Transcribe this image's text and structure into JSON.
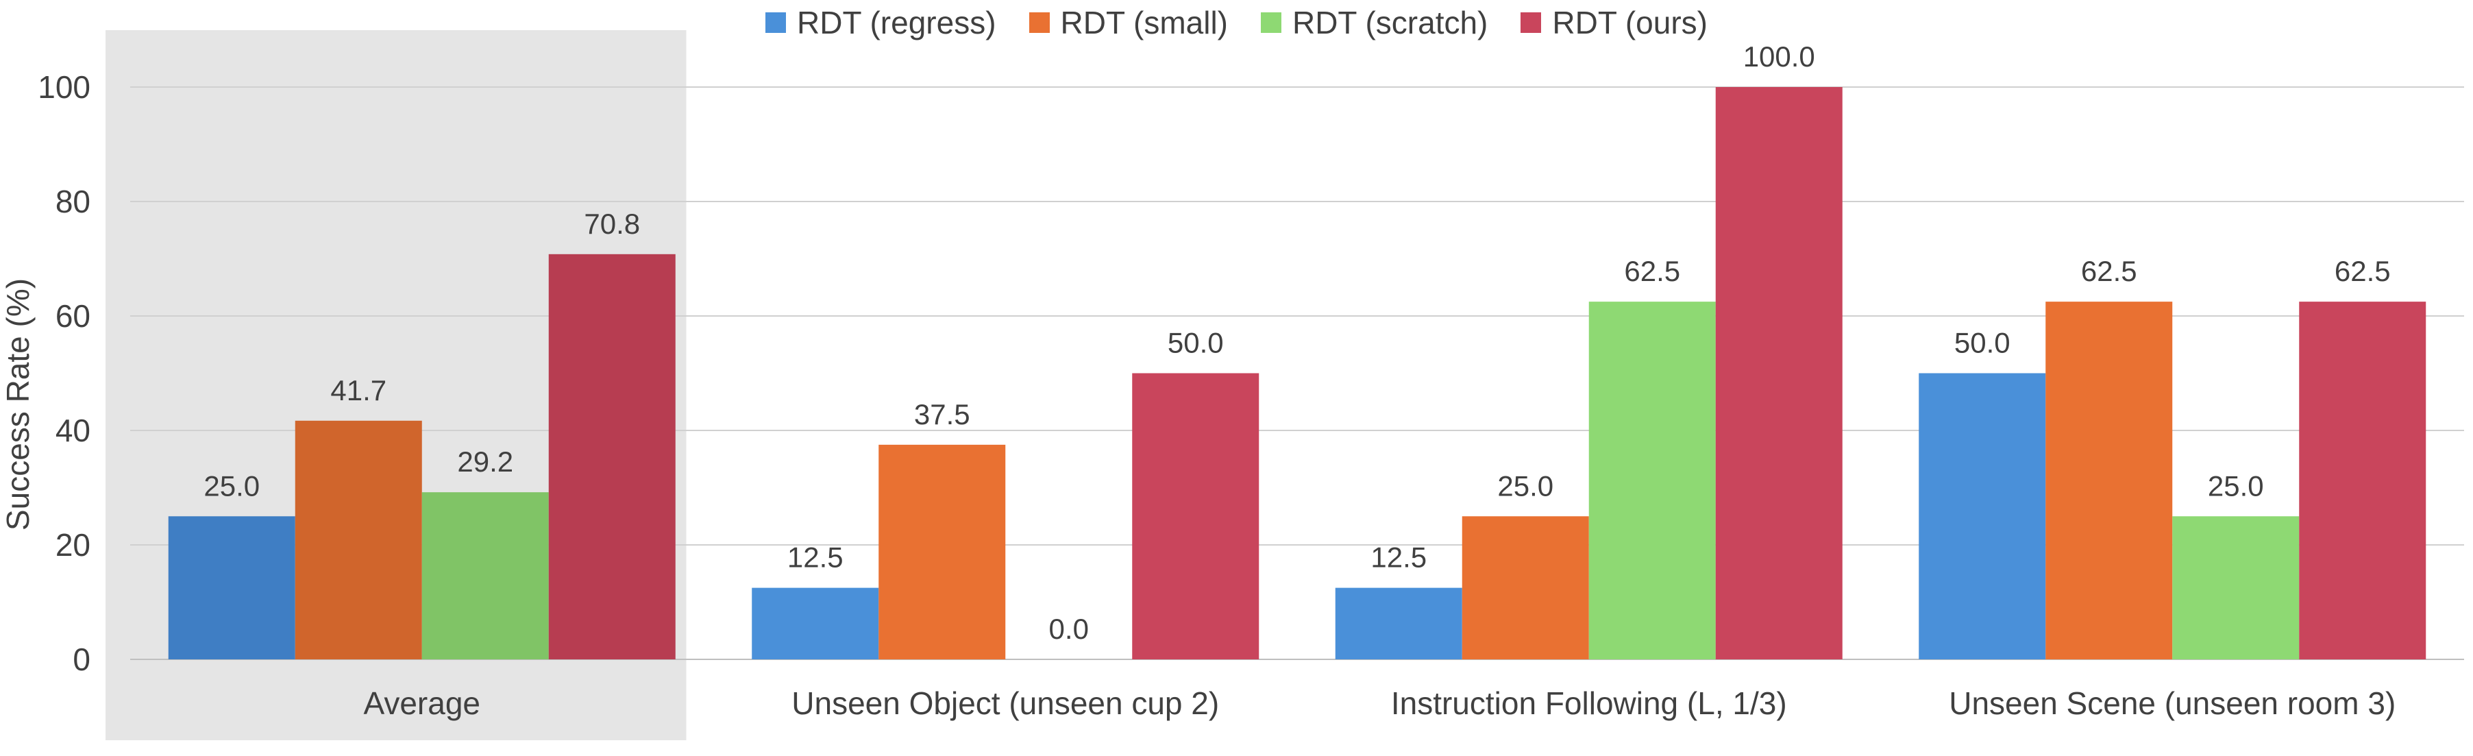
{
  "chart_data": {
    "type": "bar",
    "title": "",
    "xlabel": "",
    "ylabel": "Success Rate (%)",
    "ylim": [
      0,
      110
    ],
    "yticks": [
      0,
      20,
      40,
      60,
      80,
      100
    ],
    "grid": true,
    "legend_position": "top",
    "categories": [
      "Average",
      "Unseen Object (unseen cup 2)",
      "Instruction Following (L, 1/3)",
      "Unseen Scene (unseen room 3)"
    ],
    "highlight_category": "Average",
    "series": [
      {
        "name": "RDT (regress)",
        "color": "#4A90D9",
        "highlight_color": "#3F7EC4",
        "values": [
          25.0,
          12.5,
          12.5,
          50.0
        ]
      },
      {
        "name": "RDT (small)",
        "color": "#E97132",
        "highlight_color": "#D0652C",
        "values": [
          41.7,
          37.5,
          25.0,
          62.5
        ]
      },
      {
        "name": "RDT (scratch)",
        "color": "#8ED973",
        "highlight_color": "#80C466",
        "values": [
          29.2,
          0.0,
          62.5,
          25.0
        ]
      },
      {
        "name": "RDT (ours)",
        "color": "#C9455C",
        "highlight_color": "#B73D51",
        "values": [
          70.8,
          50.0,
          100.0,
          62.5
        ]
      }
    ],
    "value_labels": [
      [
        "25.0",
        "12.5",
        "12.5",
        "50.0"
      ],
      [
        "41.7",
        "37.5",
        "25.0",
        "62.5"
      ],
      [
        "29.2",
        "0.0",
        "62.5",
        "25.0"
      ],
      [
        "70.8",
        "50.0",
        "100.0",
        "62.5"
      ]
    ]
  }
}
